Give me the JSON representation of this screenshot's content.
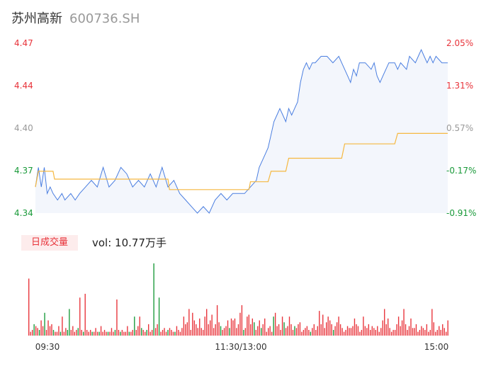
{
  "header": {
    "name": "苏州高新",
    "code": "600736.SH"
  },
  "volume_panel": {
    "tag": "日成交量",
    "summary": "vol: 10.77万手"
  },
  "colors": {
    "up": "#e8333a",
    "down": "#1a9a3a",
    "flat": "#999999",
    "price_line": "#4a7ee0",
    "avg_line": "#f5b840",
    "area": "#f3f6fc"
  },
  "chart_data": [
    {
      "type": "line",
      "y_left_ticks": [
        "4.47",
        "4.44",
        "4.40",
        "4.37",
        "4.34"
      ],
      "y_right_ticks": [
        "2.05%",
        "1.31%",
        "0.57%",
        "-0.17%",
        "-0.91%"
      ],
      "y_tick_colors": [
        "up",
        "up",
        "flat",
        "down",
        "down"
      ],
      "ylim": [
        4.34,
        4.47
      ],
      "x_ticks": [
        "09:30",
        "11:30/13:00",
        "15:00"
      ],
      "price_series": [
        [
          0,
          4.36
        ],
        [
          2,
          4.375
        ],
        [
          4,
          4.36
        ],
        [
          6,
          4.375
        ],
        [
          8,
          4.355
        ],
        [
          10,
          4.36
        ],
        [
          12,
          4.355
        ],
        [
          15,
          4.35
        ],
        [
          18,
          4.355
        ],
        [
          20,
          4.35
        ],
        [
          24,
          4.355
        ],
        [
          27,
          4.35
        ],
        [
          30,
          4.355
        ],
        [
          34,
          4.36
        ],
        [
          38,
          4.365
        ],
        [
          42,
          4.36
        ],
        [
          46,
          4.375
        ],
        [
          50,
          4.36
        ],
        [
          54,
          4.365
        ],
        [
          58,
          4.375
        ],
        [
          62,
          4.37
        ],
        [
          66,
          4.36
        ],
        [
          70,
          4.365
        ],
        [
          74,
          4.36
        ],
        [
          78,
          4.37
        ],
        [
          82,
          4.36
        ],
        [
          86,
          4.375
        ],
        [
          90,
          4.36
        ],
        [
          94,
          4.365
        ],
        [
          98,
          4.355
        ],
        [
          102,
          4.35
        ],
        [
          106,
          4.345
        ],
        [
          110,
          4.34
        ],
        [
          114,
          4.345
        ],
        [
          118,
          4.34
        ],
        [
          122,
          4.35
        ],
        [
          126,
          4.355
        ],
        [
          130,
          4.35
        ],
        [
          134,
          4.355
        ],
        [
          138,
          4.355
        ],
        [
          142,
          4.355
        ],
        [
          146,
          4.36
        ],
        [
          150,
          4.365
        ],
        [
          152,
          4.375
        ],
        [
          154,
          4.38
        ],
        [
          156,
          4.385
        ],
        [
          158,
          4.39
        ],
        [
          160,
          4.4
        ],
        [
          162,
          4.41
        ],
        [
          164,
          4.415
        ],
        [
          166,
          4.42
        ],
        [
          168,
          4.415
        ],
        [
          170,
          4.41
        ],
        [
          172,
          4.42
        ],
        [
          174,
          4.415
        ],
        [
          176,
          4.42
        ],
        [
          178,
          4.425
        ],
        [
          180,
          4.44
        ],
        [
          182,
          4.45
        ],
        [
          184,
          4.455
        ],
        [
          186,
          4.45
        ],
        [
          188,
          4.455
        ],
        [
          190,
          4.455
        ],
        [
          194,
          4.46
        ],
        [
          198,
          4.46
        ],
        [
          202,
          4.455
        ],
        [
          206,
          4.46
        ],
        [
          208,
          4.455
        ],
        [
          210,
          4.45
        ],
        [
          212,
          4.445
        ],
        [
          214,
          4.44
        ],
        [
          216,
          4.45
        ],
        [
          218,
          4.445
        ],
        [
          220,
          4.455
        ],
        [
          224,
          4.455
        ],
        [
          228,
          4.45
        ],
        [
          230,
          4.455
        ],
        [
          232,
          4.445
        ],
        [
          234,
          4.44
        ],
        [
          236,
          4.445
        ],
        [
          238,
          4.45
        ],
        [
          240,
          4.455
        ],
        [
          244,
          4.455
        ],
        [
          246,
          4.45
        ],
        [
          248,
          4.455
        ],
        [
          252,
          4.45
        ],
        [
          254,
          4.46
        ],
        [
          258,
          4.455
        ],
        [
          260,
          4.46
        ],
        [
          262,
          4.465
        ],
        [
          264,
          4.46
        ],
        [
          266,
          4.455
        ],
        [
          268,
          4.46
        ],
        [
          270,
          4.455
        ],
        [
          272,
          4.46
        ],
        [
          276,
          4.455
        ],
        [
          280,
          4.455
        ]
      ],
      "avg_series": [
        [
          0,
          4.36
        ],
        [
          2,
          4.372
        ],
        [
          12,
          4.372
        ],
        [
          13,
          4.366
        ],
        [
          40,
          4.366
        ],
        [
          45,
          4.366
        ],
        [
          90,
          4.366
        ],
        [
          91,
          4.358
        ],
        [
          140,
          4.358
        ],
        [
          141,
          4.358
        ],
        [
          145,
          4.358
        ],
        [
          146,
          4.364
        ],
        [
          158,
          4.364
        ],
        [
          160,
          4.372
        ],
        [
          170,
          4.372
        ],
        [
          172,
          4.382
        ],
        [
          208,
          4.382
        ],
        [
          210,
          4.393
        ],
        [
          244,
          4.393
        ],
        [
          246,
          4.401
        ],
        [
          280,
          4.401
        ]
      ],
      "volume_series": [
        30,
        2,
        3,
        6,
        5,
        4,
        3,
        8,
        5,
        12,
        3,
        8,
        5,
        6,
        3,
        2,
        2,
        5,
        2,
        10,
        2,
        4,
        3,
        14,
        3,
        5,
        2,
        3,
        4,
        20,
        3,
        2,
        22,
        3,
        2,
        3,
        2,
        2,
        4,
        2,
        2,
        5,
        2,
        3,
        2,
        2,
        2,
        4,
        2,
        3,
        19,
        3,
        2,
        3,
        2,
        2,
        5,
        2,
        2,
        3,
        10,
        3,
        5,
        10,
        4,
        3,
        2,
        3,
        6,
        2,
        3,
        38,
        4,
        6,
        20,
        2,
        3,
        4,
        2,
        3,
        4,
        3,
        2,
        2,
        5,
        3,
        2,
        4,
        10,
        6,
        7,
        14,
        3,
        12,
        8,
        6,
        4,
        9,
        4,
        3,
        10,
        14,
        6,
        8,
        11,
        4,
        6,
        16,
        7,
        5,
        3,
        4,
        5,
        8,
        4,
        9,
        8,
        9,
        4,
        6,
        12,
        16,
        3,
        4,
        10,
        11,
        6,
        9,
        7,
        3,
        5,
        8,
        4,
        6,
        9,
        2,
        4,
        5,
        2,
        10,
        12,
        5,
        6,
        3,
        10,
        7,
        4,
        5,
        10,
        6,
        3,
        5,
        4,
        6,
        7,
        2,
        3,
        4,
        5,
        3,
        2,
        4,
        6,
        3,
        5,
        13,
        6,
        11,
        4,
        7,
        10,
        8,
        6,
        3,
        5,
        7,
        10,
        6,
        4,
        2,
        3,
        5,
        4,
        4,
        5,
        9,
        6,
        5,
        2,
        3,
        10,
        5,
        4,
        6,
        3,
        5,
        4,
        3,
        5,
        2,
        4,
        8,
        14,
        6,
        9,
        4,
        2,
        3,
        3,
        6,
        10,
        5,
        8,
        14,
        6,
        3,
        5,
        9,
        4,
        4,
        6,
        2,
        3,
        5,
        4,
        3,
        6,
        2,
        3,
        14,
        7,
        2,
        3,
        5,
        3,
        6,
        4,
        2,
        8
      ],
      "volume_direction": [
        "up",
        "up",
        "up",
        "down",
        "up",
        "up",
        "down",
        "up",
        "up",
        "down",
        "up",
        "up",
        "up",
        "up",
        "down",
        "up",
        "up",
        "up",
        "down",
        "up",
        "up",
        "up",
        "down",
        "down",
        "up",
        "up",
        "up",
        "up",
        "down",
        "up",
        "up",
        "down",
        "up",
        "up",
        "up",
        "up",
        "down",
        "up",
        "up",
        "up",
        "down",
        "up",
        "up",
        "up",
        "up",
        "down",
        "up",
        "up",
        "up",
        "down",
        "up",
        "up",
        "down",
        "up",
        "up",
        "up",
        "up",
        "down",
        "up",
        "up",
        "down",
        "up",
        "up",
        "up",
        "down",
        "up",
        "up",
        "down",
        "up",
        "up",
        "up",
        "down",
        "up",
        "up",
        "down",
        "up",
        "up",
        "up",
        "up",
        "down",
        "up",
        "up",
        "up",
        "down",
        "up",
        "up",
        "up",
        "up",
        "up",
        "up",
        "up",
        "up",
        "up",
        "up",
        "up",
        "up",
        "up",
        "up",
        "up",
        "up",
        "up",
        "up",
        "up",
        "up",
        "up",
        "up",
        "up",
        "up",
        "up",
        "down",
        "up",
        "up",
        "up",
        "up",
        "down",
        "up",
        "up",
        "up",
        "up",
        "up",
        "up",
        "up",
        "down",
        "up",
        "up",
        "up",
        "up",
        "up",
        "down",
        "up",
        "up",
        "up",
        "down",
        "up",
        "up",
        "up",
        "up",
        "up",
        "up",
        "down",
        "up",
        "up",
        "up",
        "up",
        "up",
        "down",
        "up",
        "up",
        "up",
        "up",
        "up",
        "down",
        "up",
        "up",
        "up",
        "up",
        "up",
        "up",
        "up",
        "up",
        "down",
        "up",
        "up",
        "up",
        "up",
        "up",
        "up",
        "up",
        "up",
        "up",
        "up",
        "up",
        "up",
        "down",
        "up",
        "up",
        "up",
        "up",
        "up",
        "up",
        "up",
        "up",
        "up",
        "up",
        "up",
        "up",
        "up",
        "up",
        "up",
        "up",
        "up",
        "up",
        "up",
        "up",
        "up",
        "up",
        "up",
        "up",
        "up",
        "up",
        "up",
        "up",
        "up",
        "up",
        "up",
        "up",
        "up",
        "up",
        "up",
        "up",
        "up",
        "up",
        "up",
        "up",
        "up",
        "up",
        "up",
        "up",
        "up",
        "up",
        "up",
        "up",
        "up",
        "up",
        "up",
        "up",
        "up",
        "up",
        "up",
        "up",
        "up",
        "up",
        "up",
        "up",
        "up",
        "up",
        "up",
        "up",
        "up",
        "up",
        "up",
        "up",
        "up",
        "up",
        "up"
      ]
    }
  ]
}
